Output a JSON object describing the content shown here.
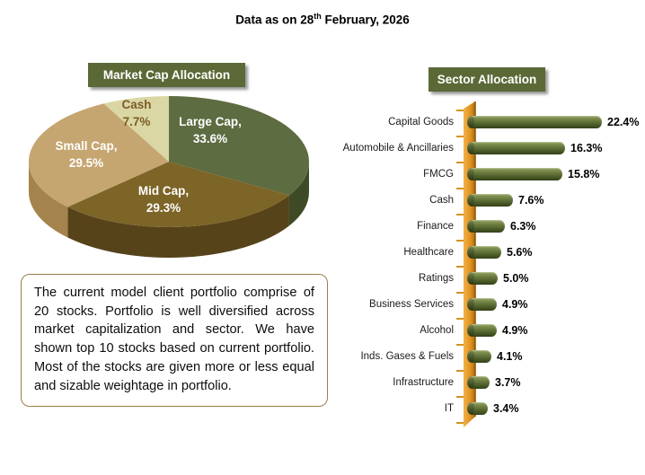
{
  "title": {
    "prefix": "Data as on 28",
    "sup": "th",
    "suffix": " February, 2026"
  },
  "note": {
    "text": "The current model client portfolio comprise of 20 stocks. Portfolio is well diversified across market capitalization and sector. We have shown top 10 stocks based on current portfolio. Most of the stocks are given more or less equal  and sizable weightage  in portfolio."
  },
  "colors": {
    "header_bg": "#5a6936",
    "bar_green": "#5a6a33",
    "axis_orange": "#e0941f",
    "note_border": "#9c7e4a"
  },
  "chart_data": [
    {
      "type": "pie",
      "title": "Market Cap Allocation",
      "labels": [
        "Large Cap",
        "Mid Cap",
        "Small Cap",
        "Cash"
      ],
      "values": [
        33.6,
        29.3,
        29.5,
        7.7
      ],
      "colors": [
        "#5d6c41",
        "#7d6527",
        "#c5a570",
        "#dad7a5"
      ],
      "side_colors": [
        "#3e4a26",
        "#57431a",
        "#a5834c",
        "#b5b075"
      ],
      "label_lines": [
        [
          "Large Cap,",
          "33.6%"
        ],
        [
          "Mid Cap,",
          "29.3%"
        ],
        [
          "Small Cap,",
          "29.5%"
        ],
        [
          "Cash",
          "7.7%"
        ]
      ],
      "style": "3d-pie",
      "start_angle_deg": 0,
      "direction": "clockwise"
    },
    {
      "type": "bar",
      "orientation": "horizontal",
      "title": "Sector Allocation",
      "categories": [
        "Capital Goods",
        "Automobile & Ancillaries",
        "FMCG",
        "Cash",
        "Finance",
        "Healthcare",
        "Ratings",
        "Business Services",
        "Alcohol",
        "Inds. Gases & Fuels",
        "Infrastructure",
        "IT"
      ],
      "values": [
        22.4,
        16.3,
        15.8,
        7.6,
        6.3,
        5.6,
        5.0,
        4.9,
        4.9,
        4.1,
        3.7,
        3.4
      ],
      "value_labels": [
        "22.4%",
        "16.3%",
        "15.8%",
        "7.6%",
        "6.3%",
        "5.6%",
        "5.0%",
        "4.9%",
        "4.9%",
        "4.1%",
        "3.7%",
        "3.4%"
      ],
      "xlim": [
        0,
        24
      ],
      "grid": false,
      "legend": false,
      "style": "3d-cylinder-bars"
    }
  ]
}
